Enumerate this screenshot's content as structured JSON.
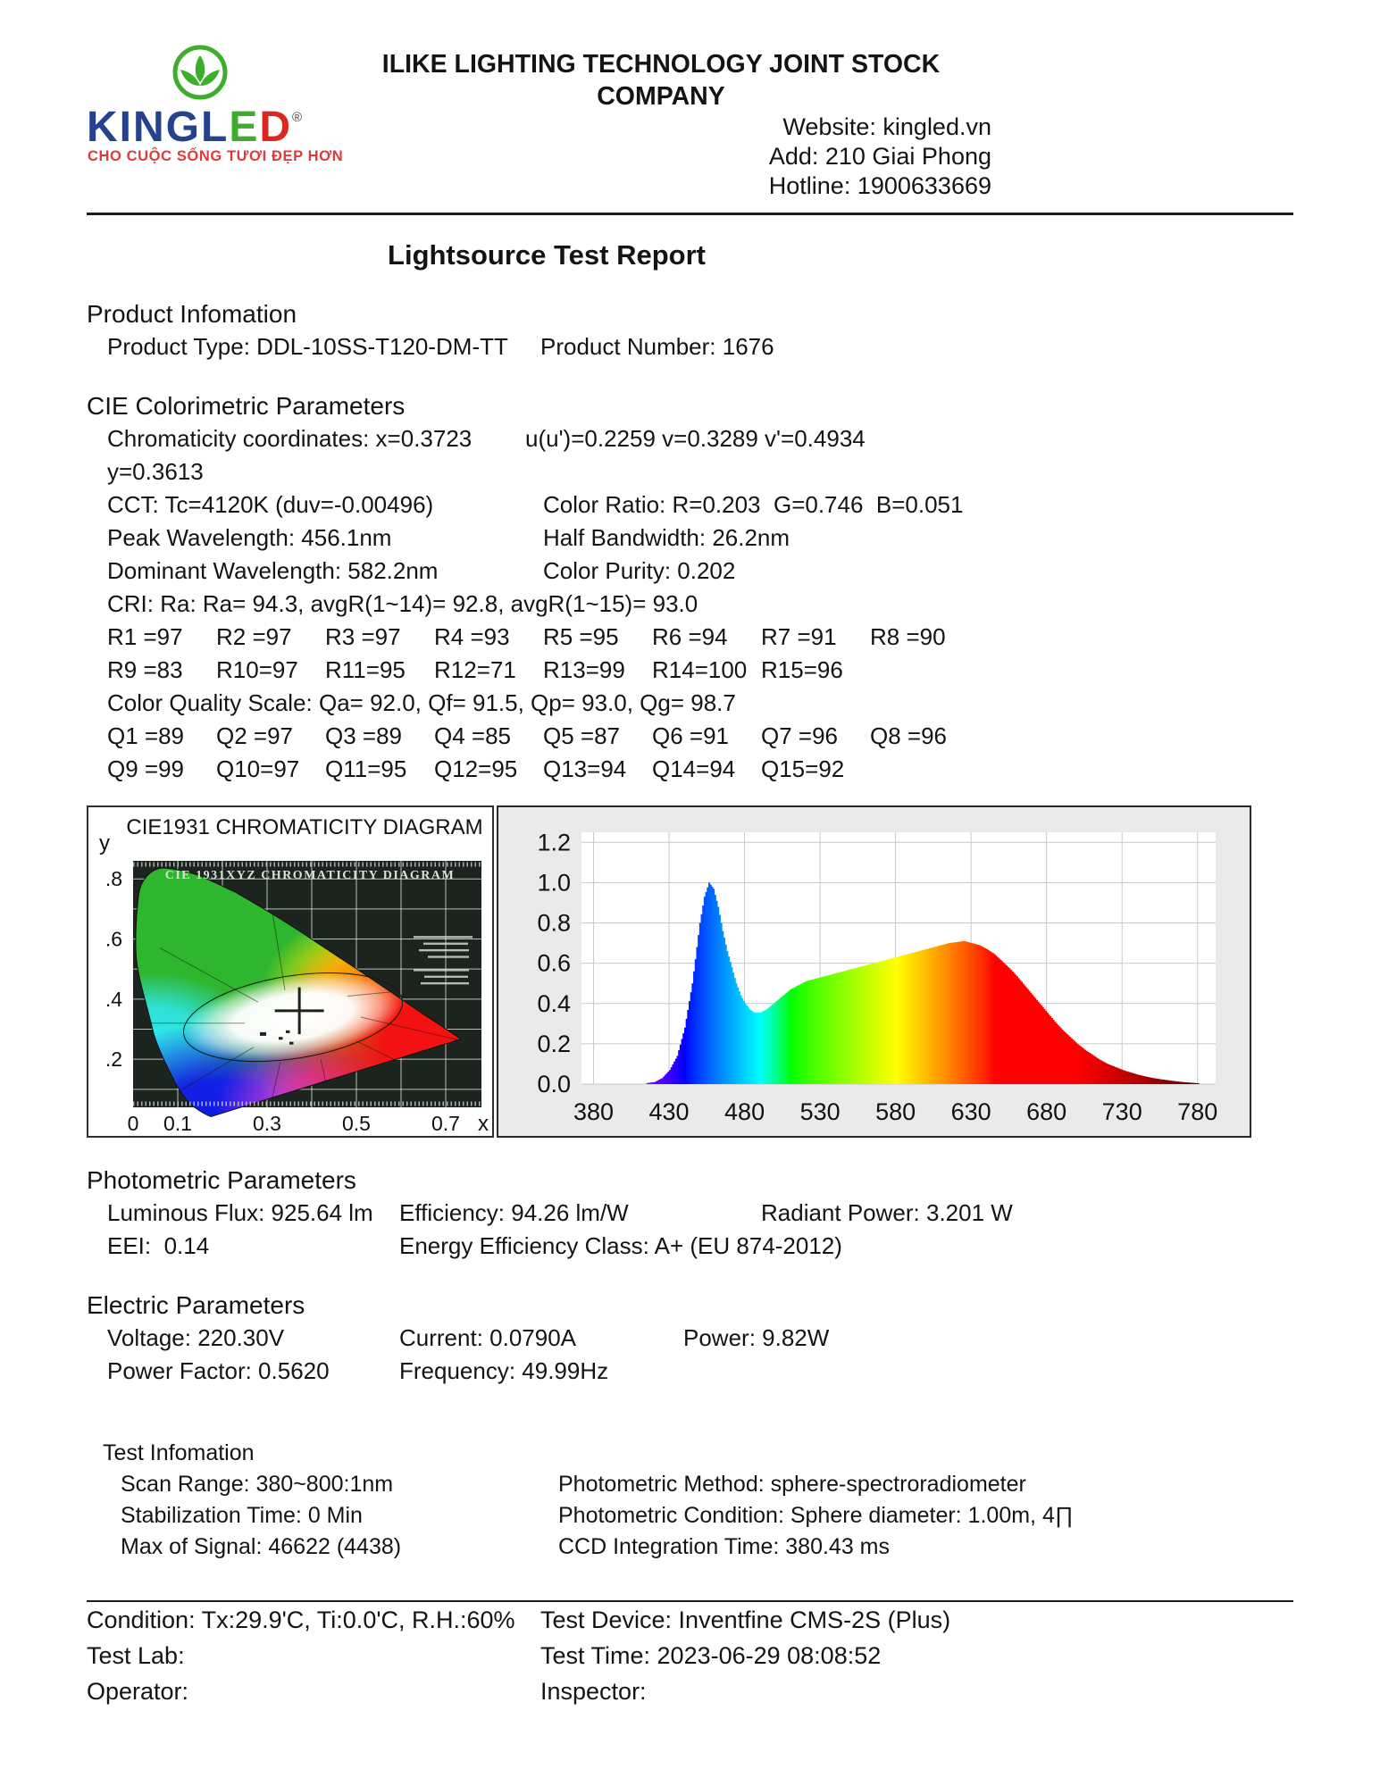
{
  "header": {
    "company": "ILIKE LIGHTING TECHNOLOGY JOINT STOCK COMPANY",
    "website": "Website: kingled.vn",
    "address": "Add: 210 Giai Phong",
    "hotline": "Hotline: 1900633669",
    "logo": {
      "kingl": "KINGL",
      "e": "E",
      "d": "D",
      "registered": "®",
      "tagline": "CHO CUỘC SỐNG TƯƠI ĐẸP HƠN",
      "navy": "#25418f",
      "green": "#3dae2b",
      "red": "#da291c"
    }
  },
  "title": "Lightsource Test Report",
  "product": {
    "heading": "Product Infomation",
    "type": "Product Type: DDL-10SS-T120-DM-TT",
    "number": "Product Number: 1676"
  },
  "cie": {
    "heading": "CIE Colorimetric Parameters",
    "row1": [
      "Chromaticity coordinates: x=0.3723 y=0.3613",
      "u(u')=0.2259 v=0.3289 v'=0.4934"
    ],
    "row2": [
      "CCT: Tc=4120K (duv=-0.00496)",
      "Color Ratio: R=0.203  G=0.746  B=0.051"
    ],
    "row3": [
      "Peak Wavelength: 456.1nm",
      "Half Bandwidth: 26.2nm"
    ],
    "row4": [
      "Dominant Wavelength: 582.2nm",
      "Color Purity: 0.202"
    ],
    "cri_line": "CRI: Ra: Ra= 94.3, avgR(1~14)= 92.8, avgR(1~15)= 93.0",
    "r_row1": [
      "R1 =97",
      "R2 =97",
      "R3 =97",
      "R4 =93",
      "R5 =95",
      "R6 =94",
      "R7 =91",
      "R8 =90"
    ],
    "r_row2": [
      "R9 =83",
      "R10=97",
      "R11=95",
      "R12=71",
      "R13=99",
      "R14=100",
      "R15=96"
    ],
    "cqs_line": "Color Quality Scale: Qa= 92.0, Qf= 91.5, Qp= 93.0, Qg= 98.7",
    "q_row1": [
      "Q1 =89",
      "Q2 =97",
      "Q3 =89",
      "Q4 =85",
      "Q5 =87",
      "Q6 =91",
      "Q7 =96",
      "Q8 =96"
    ],
    "q_row2": [
      "Q9 =99",
      "Q10=97",
      "Q11=95",
      "Q12=95",
      "Q13=94",
      "Q14=94",
      "Q15=92"
    ]
  },
  "photometric": {
    "heading": "Photometric Parameters",
    "luminous_flux": "Luminous Flux: 925.64 lm",
    "efficiency": "Efficiency: 94.26 lm/W",
    "radiant_power": "Radiant Power: 3.201 W",
    "eei": "EEI:  0.14",
    "energy_class": "Energy Efficiency Class: A+ (EU 874-2012)"
  },
  "electric": {
    "heading": "Electric Parameters",
    "voltage": "Voltage: 220.30V",
    "current": "Current: 0.0790A",
    "power": "Power: 9.82W",
    "power_factor": "Power Factor: 0.5620",
    "frequency": "Frequency: 49.99Hz"
  },
  "test_info": {
    "heading": "Test Infomation",
    "left": [
      "Scan Range: 380~800:1nm",
      "Stabilization Time: 0 Min",
      "Max of Signal: 46622 (4438)"
    ],
    "right": [
      "Photometric Method: sphere-spectroradiometer",
      "Photometric Condition: Sphere diameter: 1.00m, 4∏",
      "CCD Integration Time: 380.43 ms"
    ]
  },
  "footer": {
    "left": [
      "Condition: Tx:29.9'C, Ti:0.0'C, R.H.:60%",
      "Test Lab:",
      "Operator:"
    ],
    "right": [
      "Test Device: Inventfine CMS-2S (Plus)",
      "Test Time: 2023-06-29 08:08:52",
      "Inspector:"
    ]
  },
  "chart_data": [
    {
      "type": "scatter",
      "title": "CIE1931 CHROMATICITY DIAGRAM",
      "inner_title": "CIE 1931XYZ CHROMATICITY DIAGRAM",
      "xlabel": "x",
      "ylabel": "y",
      "x_ticks": [
        "0",
        "0.1",
        "0.3",
        "0.5",
        "0.7"
      ],
      "y_ticks": [
        ".8",
        ".6",
        ".4",
        ".2"
      ],
      "xlim": [
        0,
        0.78
      ],
      "ylim": [
        0.04,
        0.86
      ],
      "grid": true,
      "legend_position": "none",
      "points": [
        {
          "label": "measured chromaticity point",
          "x": 0.3723,
          "y": 0.3613
        }
      ]
    },
    {
      "type": "area",
      "title": "",
      "xlabel": "",
      "ylabel": "",
      "x_ticks": [
        380,
        430,
        480,
        530,
        580,
        630,
        680,
        730,
        780
      ],
      "y_ticks": [
        "1.2",
        "1.0",
        "0.8",
        "0.6",
        "0.4",
        "0.2",
        "0.0"
      ],
      "xlim": [
        372,
        792
      ],
      "ylim": [
        0,
        1.25
      ],
      "grid": true,
      "series_name": "relative spectral power distribution",
      "points": [
        [
          415,
          0.005
        ],
        [
          420,
          0.01
        ],
        [
          425,
          0.03
        ],
        [
          430,
          0.07
        ],
        [
          435,
          0.14
        ],
        [
          440,
          0.28
        ],
        [
          445,
          0.5
        ],
        [
          450,
          0.8
        ],
        [
          453,
          0.93
        ],
        [
          456,
          1.0
        ],
        [
          459,
          0.97
        ],
        [
          462,
          0.88
        ],
        [
          465,
          0.76
        ],
        [
          468,
          0.66
        ],
        [
          471,
          0.58
        ],
        [
          474,
          0.5
        ],
        [
          477,
          0.44
        ],
        [
          480,
          0.4
        ],
        [
          483,
          0.37
        ],
        [
          486,
          0.355
        ],
        [
          490,
          0.355
        ],
        [
          494,
          0.37
        ],
        [
          498,
          0.395
        ],
        [
          502,
          0.42
        ],
        [
          506,
          0.445
        ],
        [
          510,
          0.47
        ],
        [
          515,
          0.49
        ],
        [
          520,
          0.51
        ],
        [
          525,
          0.52
        ],
        [
          530,
          0.53
        ],
        [
          535,
          0.54
        ],
        [
          540,
          0.55
        ],
        [
          545,
          0.56
        ],
        [
          550,
          0.57
        ],
        [
          555,
          0.58
        ],
        [
          560,
          0.59
        ],
        [
          565,
          0.6
        ],
        [
          570,
          0.61
        ],
        [
          575,
          0.62
        ],
        [
          580,
          0.63
        ],
        [
          585,
          0.64
        ],
        [
          590,
          0.65
        ],
        [
          595,
          0.66
        ],
        [
          600,
          0.67
        ],
        [
          605,
          0.68
        ],
        [
          610,
          0.69
        ],
        [
          615,
          0.7
        ],
        [
          620,
          0.705
        ],
        [
          625,
          0.71
        ],
        [
          630,
          0.7
        ],
        [
          635,
          0.69
        ],
        [
          640,
          0.67
        ],
        [
          645,
          0.645
        ],
        [
          650,
          0.61
        ],
        [
          655,
          0.575
        ],
        [
          660,
          0.535
        ],
        [
          665,
          0.49
        ],
        [
          670,
          0.445
        ],
        [
          675,
          0.4
        ],
        [
          680,
          0.355
        ],
        [
          685,
          0.31
        ],
        [
          690,
          0.27
        ],
        [
          695,
          0.235
        ],
        [
          700,
          0.2
        ],
        [
          705,
          0.17
        ],
        [
          710,
          0.145
        ],
        [
          715,
          0.12
        ],
        [
          720,
          0.1
        ],
        [
          725,
          0.085
        ],
        [
          730,
          0.07
        ],
        [
          735,
          0.058
        ],
        [
          740,
          0.047
        ],
        [
          745,
          0.038
        ],
        [
          750,
          0.03
        ],
        [
          755,
          0.024
        ],
        [
          760,
          0.019
        ],
        [
          765,
          0.014
        ],
        [
          770,
          0.01
        ],
        [
          775,
          0.007
        ],
        [
          780,
          0.004
        ]
      ]
    }
  ]
}
